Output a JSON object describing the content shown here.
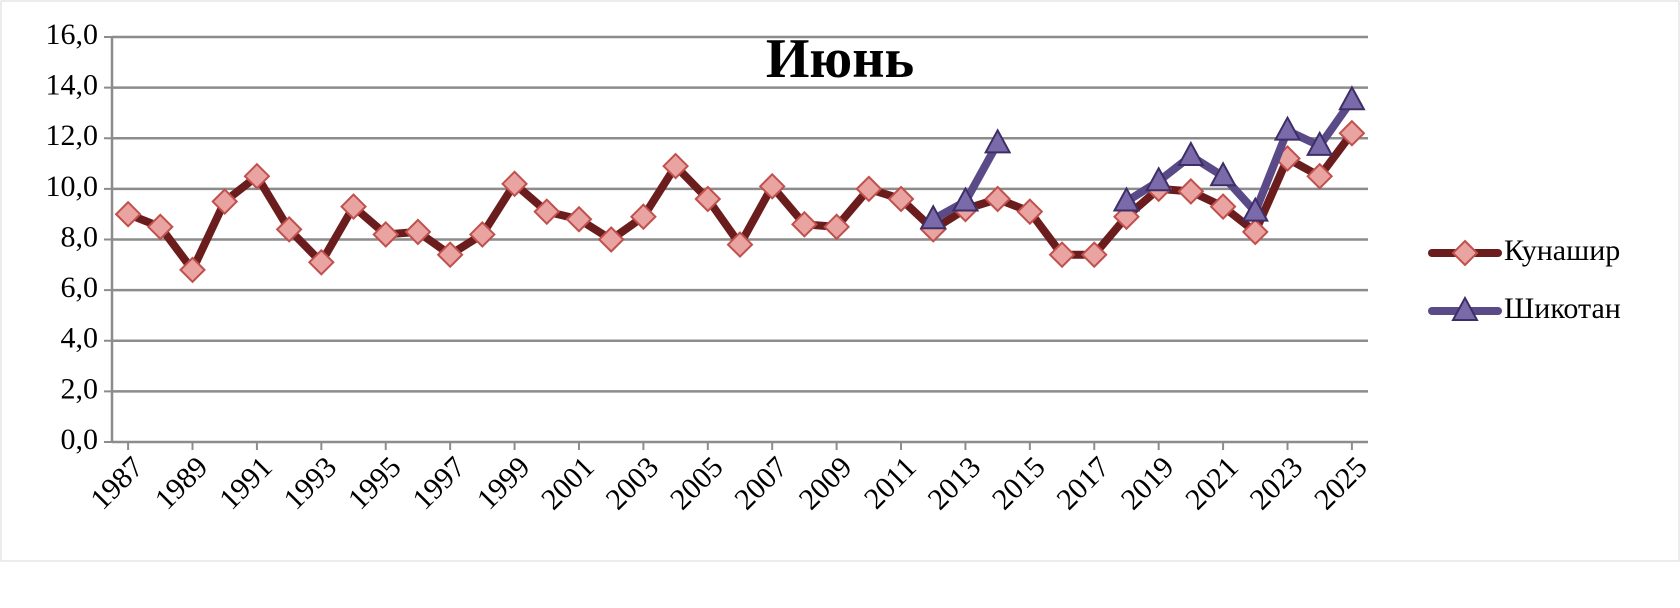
{
  "chart_data": {
    "type": "line",
    "title": "Июнь",
    "x": [
      1987,
      1988,
      1989,
      1990,
      1991,
      1992,
      1993,
      1994,
      1995,
      1996,
      1997,
      1998,
      1999,
      2000,
      2001,
      2002,
      2003,
      2004,
      2005,
      2006,
      2007,
      2008,
      2009,
      2010,
      2011,
      2012,
      2013,
      2014,
      2015,
      2016,
      2017,
      2018,
      2019,
      2020,
      2021,
      2022,
      2023,
      2024,
      2025
    ],
    "xlim": [
      1986.5,
      2025.5
    ],
    "xticks": [
      1987,
      1989,
      1991,
      1993,
      1995,
      1997,
      1999,
      2001,
      2003,
      2005,
      2007,
      2009,
      2011,
      2013,
      2015,
      2017,
      2019,
      2021,
      2023,
      2025
    ],
    "ylim": [
      0,
      16
    ],
    "yticks": [
      {
        "value": 0,
        "label": "0,0"
      },
      {
        "value": 2,
        "label": "2,0"
      },
      {
        "value": 4,
        "label": "4,0"
      },
      {
        "value": 6,
        "label": "6,0"
      },
      {
        "value": 8,
        "label": "8,0"
      },
      {
        "value": 10,
        "label": "10,0"
      },
      {
        "value": 12,
        "label": "12,0"
      },
      {
        "value": 14,
        "label": "14,0"
      },
      {
        "value": 16,
        "label": "16,0"
      }
    ],
    "grid": true,
    "legend": "right",
    "series": [
      {
        "name": "Кунашир",
        "color": "#6b1c1c",
        "marker": "diamond",
        "marker_color": "#e9a3a0",
        "values": [
          9.0,
          8.5,
          6.8,
          9.5,
          10.5,
          8.4,
          7.1,
          9.3,
          8.2,
          8.3,
          7.4,
          8.2,
          10.2,
          9.1,
          8.8,
          8.0,
          8.9,
          10.9,
          9.6,
          7.8,
          10.1,
          8.6,
          8.5,
          10.0,
          9.6,
          8.4,
          9.2,
          9.6,
          9.1,
          7.4,
          7.4,
          8.9,
          10.0,
          9.9,
          9.3,
          8.3,
          11.2,
          10.5,
          12.2
        ]
      },
      {
        "name": "Шикотан",
        "color": "#5b4a88",
        "marker": "triangle",
        "marker_color": "#7b6aaa",
        "values": [
          null,
          null,
          null,
          null,
          null,
          null,
          null,
          null,
          null,
          null,
          null,
          null,
          null,
          null,
          null,
          null,
          null,
          null,
          null,
          null,
          null,
          null,
          null,
          null,
          null,
          8.8,
          9.5,
          11.8,
          null,
          null,
          null,
          9.5,
          10.3,
          11.3,
          10.5,
          9.1,
          12.3,
          11.7,
          13.5
        ]
      }
    ]
  }
}
